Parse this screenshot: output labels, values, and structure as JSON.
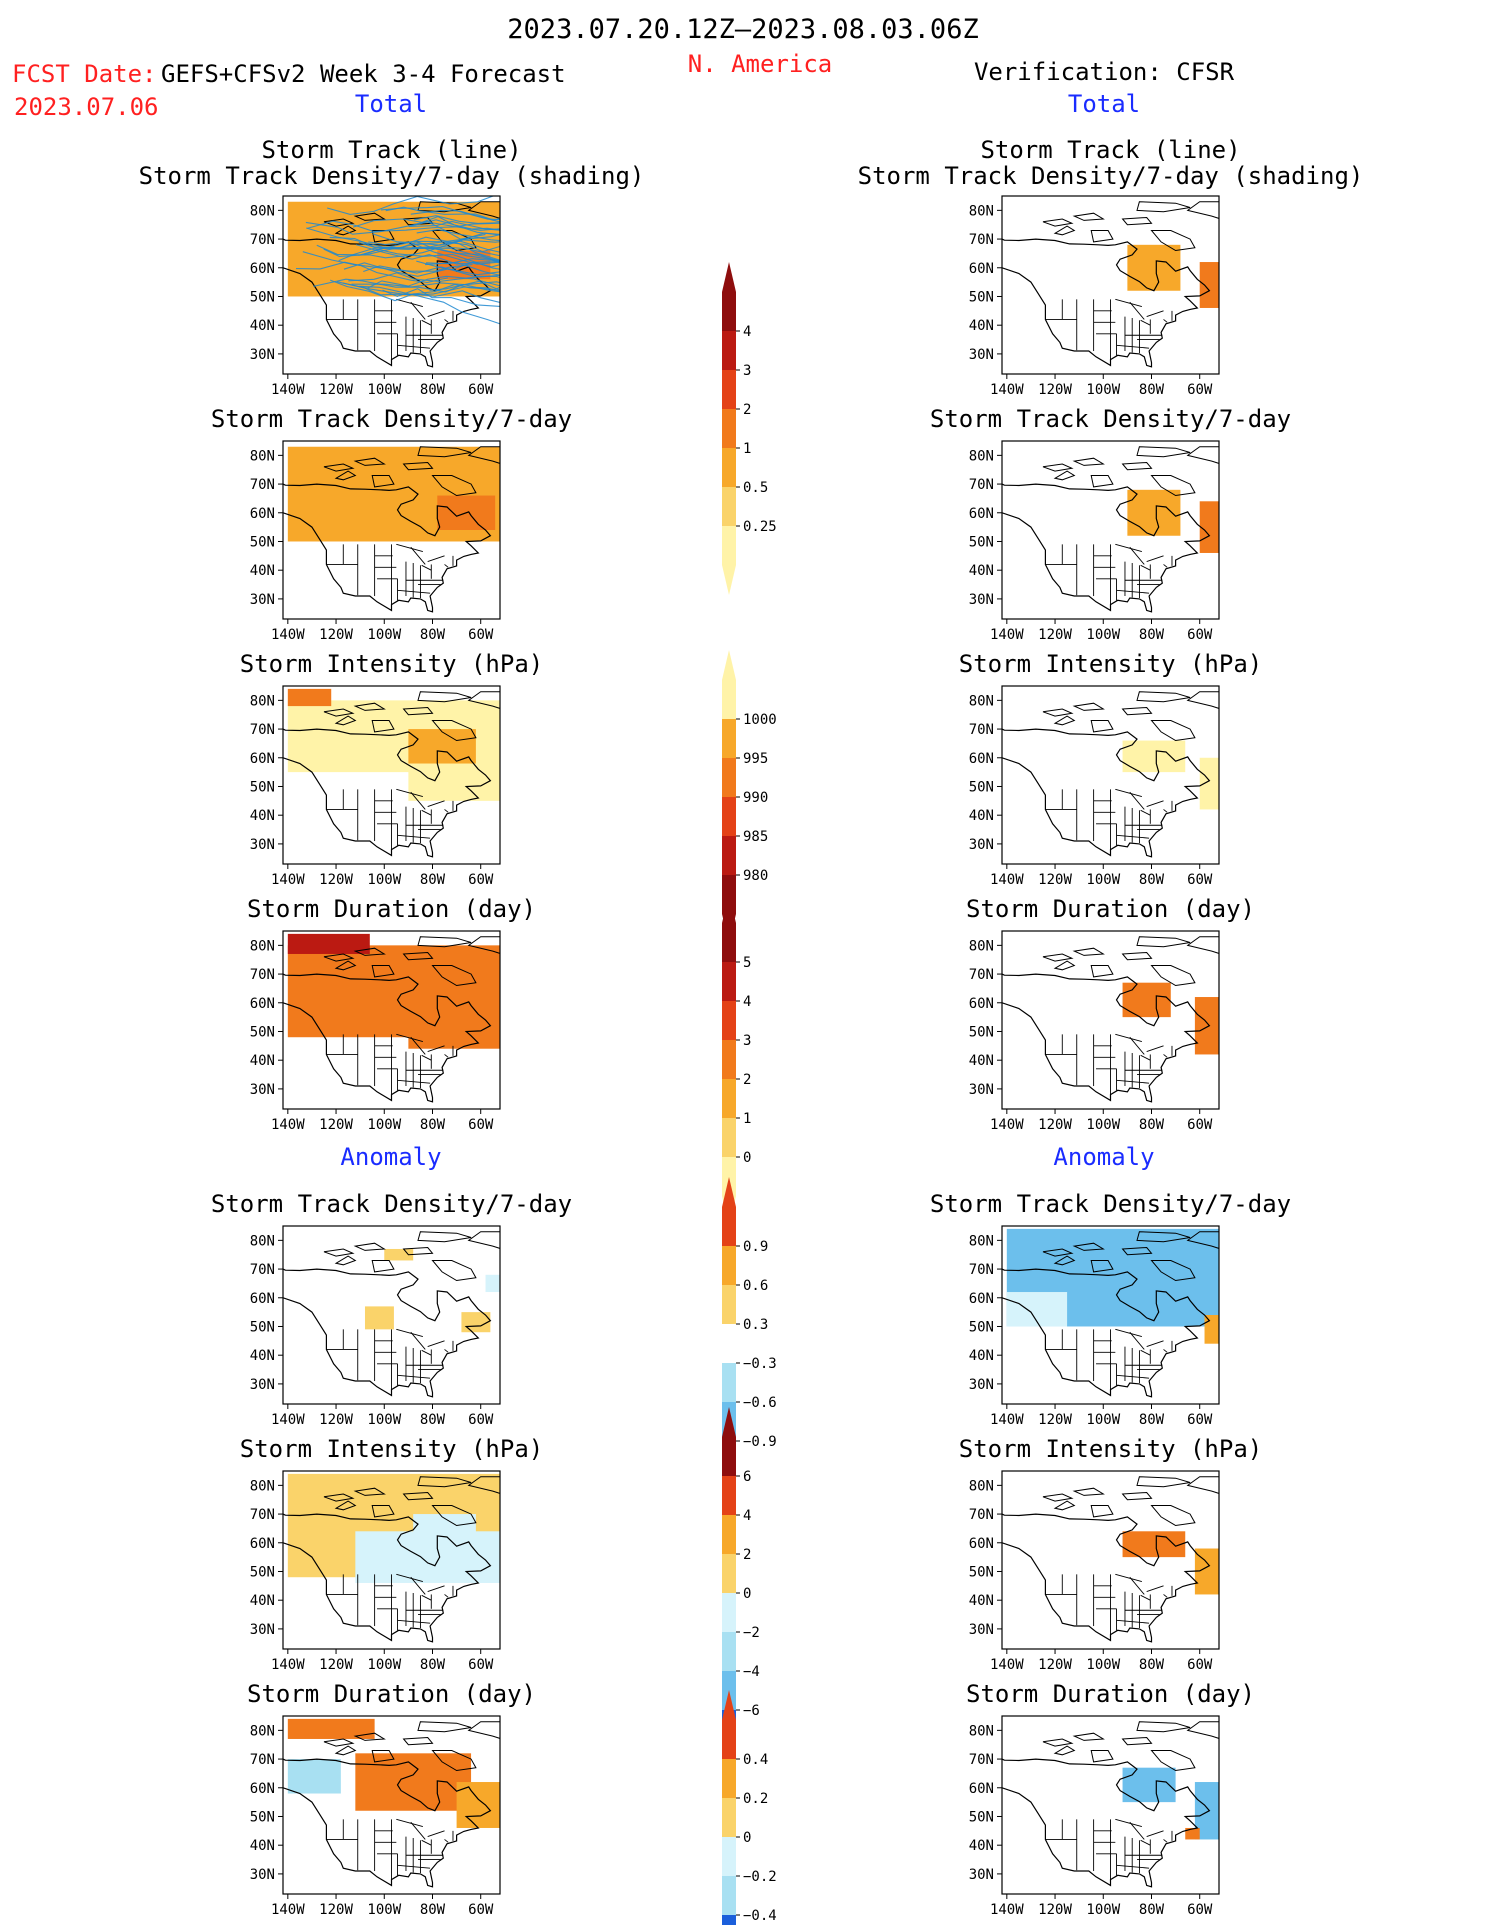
{
  "header": {
    "title": "2023.07.20.12Z–2023.08.03.06Z",
    "fcst_label": "FCST Date:",
    "fcst_model": "GEFS+CFSv2 Week 3-4 Forecast",
    "fcst_date": "2023.07.06",
    "region": "N. America",
    "verification": "Verification: CFSR"
  },
  "sections": {
    "total": "Total",
    "anomaly": "Anomaly"
  },
  "panel_titles": {
    "track_line": "Storm Track (line)",
    "track_shading": "Storm Track Density/7-day (shading)",
    "density": "Storm Track Density/7-day",
    "intensity": "Storm Intensity (hPa)",
    "duration": "Storm Duration (day)"
  },
  "axis": {
    "lat_labels": [
      "80N",
      "70N",
      "60N",
      "50N",
      "40N",
      "30N"
    ],
    "lon_labels": [
      "140W",
      "120W",
      "100W",
      "80W",
      "60W"
    ]
  },
  "colors": {
    "red_text": "#ff2020",
    "blue_text": "#1a2cff",
    "warm": [
      "#fff3a8",
      "#fad36a",
      "#f7a82a",
      "#f17a1c",
      "#e44217",
      "#bb1a12",
      "#8e0d0d"
    ],
    "cool": [
      "#d6f3fb",
      "#a8e0f2",
      "#6cbfec",
      "#3a8ee8",
      "#1b5fdb"
    ],
    "track_line": "#1e88d0"
  },
  "chart_data": [
    {
      "id": "fcst-total-track-density-line",
      "type": "heatmap",
      "title": "Storm Track (line) / Storm Track Density/7-day (shading)",
      "region_fill": [
        {
          "lat": [
            50,
            83
          ],
          "lon": [
            -140,
            -52
          ],
          "level": 2
        },
        {
          "lat": [
            56,
            66
          ],
          "lon": [
            -78,
            -56
          ],
          "level": 3
        }
      ],
      "tracks": 42
    },
    {
      "id": "fcst-total-density",
      "type": "heatmap",
      "title": "Storm Track Density/7-day",
      "region_fill": [
        {
          "lat": [
            50,
            83
          ],
          "lon": [
            -140,
            -52
          ],
          "level": 2
        },
        {
          "lat": [
            54,
            66
          ],
          "lon": [
            -78,
            -54
          ],
          "level": 3
        }
      ]
    },
    {
      "id": "fcst-total-intensity",
      "type": "heatmap",
      "title": "Storm Intensity (hPa)",
      "region_fill": [
        {
          "lat": [
            55,
            80
          ],
          "lon": [
            -140,
            -50
          ],
          "level": 0
        },
        {
          "lat": [
            45,
            60
          ],
          "lon": [
            -90,
            -50
          ],
          "level": 0
        },
        {
          "lat": [
            58,
            70
          ],
          "lon": [
            -90,
            -62
          ],
          "level": 2
        },
        {
          "lat": [
            78,
            84
          ],
          "lon": [
            -140,
            -122
          ],
          "level": 3
        }
      ]
    },
    {
      "id": "fcst-total-duration",
      "type": "heatmap",
      "title": "Storm Duration (day)",
      "region_fill": [
        {
          "lat": [
            48,
            80
          ],
          "lon": [
            -140,
            -50
          ],
          "level": 3
        },
        {
          "lat": [
            44,
            55
          ],
          "lon": [
            -90,
            -50
          ],
          "level": 3
        },
        {
          "lat": [
            77,
            84
          ],
          "lon": [
            -140,
            -106
          ],
          "level": 5
        }
      ]
    },
    {
      "id": "cfsr-total-track-density-line",
      "type": "heatmap",
      "title": "Storm Track (line) / Storm Track Density/7-day (shading)",
      "region_fill": [
        {
          "lat": [
            52,
            68
          ],
          "lon": [
            -90,
            -68
          ],
          "level": 2
        },
        {
          "lat": [
            46,
            62
          ],
          "lon": [
            -60,
            -50
          ],
          "level": 3
        }
      ]
    },
    {
      "id": "cfsr-total-density",
      "type": "heatmap",
      "title": "Storm Track Density/7-day",
      "region_fill": [
        {
          "lat": [
            52,
            68
          ],
          "lon": [
            -90,
            -68
          ],
          "level": 2
        },
        {
          "lat": [
            46,
            64
          ],
          "lon": [
            -60,
            -50
          ],
          "level": 3
        }
      ]
    },
    {
      "id": "cfsr-total-intensity",
      "type": "heatmap",
      "title": "Storm Intensity (hPa)",
      "region_fill": [
        {
          "lat": [
            55,
            66
          ],
          "lon": [
            -92,
            -66
          ],
          "level": 0
        },
        {
          "lat": [
            42,
            60
          ],
          "lon": [
            -60,
            -50
          ],
          "level": 0
        }
      ]
    },
    {
      "id": "cfsr-total-duration",
      "type": "heatmap",
      "title": "Storm Duration (day)",
      "region_fill": [
        {
          "lat": [
            55,
            67
          ],
          "lon": [
            -92,
            -72
          ],
          "level": 3
        },
        {
          "lat": [
            42,
            62
          ],
          "lon": [
            -62,
            -50
          ],
          "level": 3
        }
      ]
    },
    {
      "id": "fcst-anomaly-density",
      "type": "heatmap",
      "title": "Storm Track Density/7-day",
      "region_fill": [
        {
          "lat": [
            73,
            77
          ],
          "lon": [
            -100,
            -88
          ],
          "level": 1
        },
        {
          "lat": [
            49,
            57
          ],
          "lon": [
            -108,
            -96
          ],
          "level": 1
        },
        {
          "lat": [
            48,
            55
          ],
          "lon": [
            -68,
            -56
          ],
          "level": 1
        },
        {
          "lat": [
            62,
            68
          ],
          "lon": [
            -58,
            -50
          ],
          "level": -1
        }
      ]
    },
    {
      "id": "fcst-anomaly-intensity",
      "type": "heatmap",
      "title": "Storm Intensity (hPa)",
      "region_fill": [
        {
          "lat": [
            48,
            84
          ],
          "lon": [
            -140,
            -50
          ],
          "level": 1
        },
        {
          "lat": [
            46,
            64
          ],
          "lon": [
            -112,
            -50
          ],
          "level": -1
        },
        {
          "lat": [
            60,
            70
          ],
          "lon": [
            -88,
            -62
          ],
          "level": -1
        }
      ]
    },
    {
      "id": "fcst-anomaly-duration",
      "type": "heatmap",
      "title": "Storm Duration (day)",
      "region_fill": [
        {
          "lat": [
            77,
            84
          ],
          "lon": [
            -140,
            -104
          ],
          "level": 3
        },
        {
          "lat": [
            52,
            72
          ],
          "lon": [
            -112,
            -64
          ],
          "level": 3
        },
        {
          "lat": [
            58,
            70
          ],
          "lon": [
            -140,
            -118
          ],
          "level": -2
        },
        {
          "lat": [
            46,
            62
          ],
          "lon": [
            -70,
            -50
          ],
          "level": 2
        }
      ]
    },
    {
      "id": "cfsr-anomaly-density",
      "type": "heatmap",
      "title": "Storm Track Density/7-day",
      "region_fill": [
        {
          "lat": [
            50,
            84
          ],
          "lon": [
            -140,
            -50
          ],
          "level": -3
        },
        {
          "lat": [
            50,
            62
          ],
          "lon": [
            -140,
            -115
          ],
          "level": -1
        },
        {
          "lat": [
            44,
            54
          ],
          "lon": [
            -58,
            -50
          ],
          "level": 2
        }
      ]
    },
    {
      "id": "cfsr-anomaly-intensity",
      "type": "heatmap",
      "title": "Storm Intensity (hPa)",
      "region_fill": [
        {
          "lat": [
            55,
            64
          ],
          "lon": [
            -92,
            -66
          ],
          "level": 3
        },
        {
          "lat": [
            42,
            58
          ],
          "lon": [
            -62,
            -50
          ],
          "level": 2
        }
      ]
    },
    {
      "id": "cfsr-anomaly-duration",
      "type": "heatmap",
      "title": "Storm Duration (day)",
      "region_fill": [
        {
          "lat": [
            55,
            67
          ],
          "lon": [
            -92,
            -70
          ],
          "level": -3
        },
        {
          "lat": [
            42,
            62
          ],
          "lon": [
            -62,
            -50
          ],
          "level": -3
        },
        {
          "lat": [
            42,
            46
          ],
          "lon": [
            -66,
            -60
          ],
          "level": 3
        }
      ]
    }
  ],
  "colorbars": [
    {
      "id": "density",
      "labels": [
        "4",
        "3",
        "2",
        "1",
        "0.5",
        "0.25"
      ]
    },
    {
      "id": "intensity",
      "labels": [
        "1000",
        "995",
        "990",
        "985",
        "980"
      ]
    },
    {
      "id": "duration",
      "labels": [
        "5",
        "4",
        "3",
        "2",
        "1",
        "0"
      ]
    },
    {
      "id": "density-anomaly",
      "labels": [
        "0.9",
        "0.6",
        "0.3",
        "−0.3",
        "−0.6",
        "−0.9"
      ]
    },
    {
      "id": "intensity-anomaly",
      "labels": [
        "6",
        "4",
        "2",
        "0",
        "−2",
        "−4",
        "−6"
      ]
    },
    {
      "id": "duration-anomaly",
      "labels": [
        "0.4",
        "0.2",
        "0",
        "−0.2",
        "−0.4"
      ]
    }
  ]
}
